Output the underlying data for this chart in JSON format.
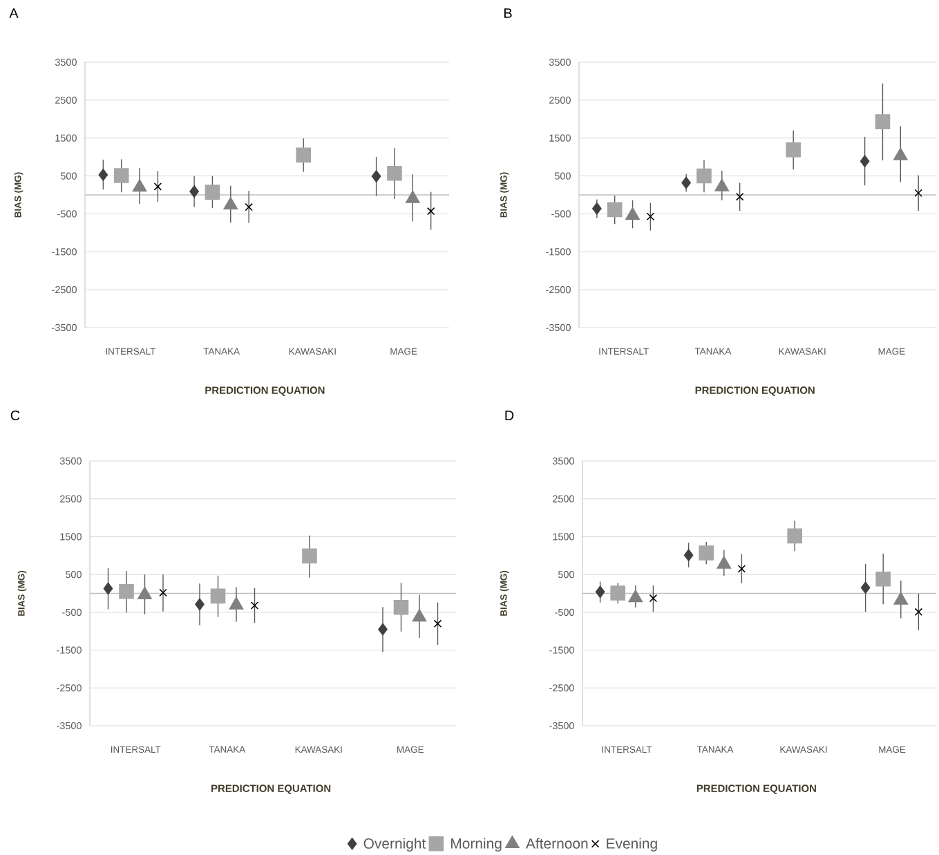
{
  "chart_data": [
    {
      "type": "scatter",
      "title": "A",
      "xlabel": "PREDICTION EQUATION",
      "ylabel": "BIAS (MG)",
      "categories": [
        "INTERSALT",
        "TANAKA",
        "KAWASAKI",
        "MAGE"
      ],
      "ylim": [
        -3500,
        3500
      ],
      "yticks": [
        -3500,
        -2500,
        -1500,
        -500,
        500,
        1500,
        2500,
        3500
      ],
      "grid": "y",
      "ref_lines": [
        {
          "axis": "y",
          "value": 0,
          "color": "#bfbfbf"
        }
      ],
      "series": [
        {
          "color": "#404040",
          "marker": "diamond",
          "values": [
            530,
            90,
            null,
            490
          ],
          "errors": [
            [
              140,
              930
            ],
            [
              -320,
              500
            ],
            null,
            [
              -30,
              1000
            ]
          ]
        },
        {
          "color": "#a6a6a6",
          "marker": "square",
          "values": [
            510,
            70,
            1050,
            570
          ],
          "errors": [
            [
              70,
              940
            ],
            [
              -350,
              500
            ],
            [
              610,
              1490
            ],
            [
              -110,
              1240
            ]
          ]
        },
        {
          "color": "#808080",
          "marker": "triangle",
          "values": [
            200,
            -270,
            null,
            -100
          ],
          "errors": [
            [
              -240,
              710
            ],
            [
              -730,
              240
            ],
            null,
            [
              -700,
              540
            ]
          ]
        },
        {
          "color": "#000000",
          "marker": "cross",
          "values": [
            220,
            -320,
            null,
            -430
          ],
          "errors": [
            [
              -180,
              630
            ],
            [
              -740,
              110
            ],
            null,
            [
              -920,
              80
            ]
          ]
        }
      ]
    },
    {
      "type": "scatter",
      "title": "B",
      "xlabel": "PREDICTION EQUATION",
      "ylabel": "BIAS (MG)",
      "categories": [
        "INTERSALT",
        "TANAKA",
        "KAWASAKI",
        "MAGE"
      ],
      "ylim": [
        -3500,
        3500
      ],
      "yticks": [
        -3500,
        -2500,
        -1500,
        -500,
        500,
        1500,
        2500,
        3500
      ],
      "grid": "y",
      "ref_lines": [
        {
          "axis": "y",
          "value": 0,
          "color": "#bfbfbf"
        }
      ],
      "series": [
        {
          "color": "#404040",
          "marker": "diamond",
          "values": [
            -360,
            320,
            null,
            890
          ],
          "errors": [
            [
              -610,
              -120
            ],
            [
              80,
              550
            ],
            null,
            [
              250,
              1530
            ]
          ]
        },
        {
          "color": "#a6a6a6",
          "marker": "square",
          "values": [
            -390,
            500,
            1190,
            1930
          ],
          "errors": [
            [
              -770,
              -20
            ],
            [
              70,
              920
            ],
            [
              670,
              1700
            ],
            [
              910,
              2940
            ]
          ]
        },
        {
          "color": "#808080",
          "marker": "triangle",
          "values": [
            -540,
            210,
            null,
            1030
          ],
          "errors": [
            [
              -880,
              -140
            ],
            [
              -140,
              640
            ],
            null,
            [
              340,
              1810
            ]
          ]
        },
        {
          "color": "#000000",
          "marker": "cross",
          "values": [
            -570,
            -50,
            null,
            50
          ],
          "errors": [
            [
              -940,
              -210
            ],
            [
              -420,
              320
            ],
            null,
            [
              -420,
              520
            ]
          ]
        }
      ]
    },
    {
      "type": "scatter",
      "title": "C",
      "xlabel": "PREDICTION EQUATION",
      "ylabel": "BIAS (MG)",
      "categories": [
        "INTERSALT",
        "TANAKA",
        "KAWASAKI",
        "MAGE"
      ],
      "ylim": [
        -3500,
        3500
      ],
      "yticks": [
        -3500,
        -2500,
        -1500,
        -500,
        500,
        1500,
        2500,
        3500
      ],
      "grid": "y",
      "legend": "bottom",
      "ref_lines": [
        {
          "axis": "y",
          "value": 0,
          "color": "#bfbfbf"
        }
      ],
      "series": [
        {
          "name": "Overnight",
          "color": "#404040",
          "marker": "diamond",
          "values": [
            130,
            -290,
            null,
            -950
          ],
          "errors": [
            [
              -420,
              670
            ],
            [
              -840,
              260
            ],
            null,
            [
              -1550,
              -360
            ]
          ]
        },
        {
          "name": "Morning",
          "color": "#a6a6a6",
          "marker": "square",
          "values": [
            50,
            -70,
            990,
            -370
          ],
          "errors": [
            [
              -510,
              590
            ],
            [
              -620,
              470
            ],
            [
              420,
              1530
            ],
            [
              -1010,
              280
            ]
          ]
        },
        {
          "name": "Afternoon",
          "color": "#808080",
          "marker": "triangle",
          "values": [
            -40,
            -310,
            null,
            -630
          ],
          "errors": [
            [
              -550,
              500
            ],
            [
              -750,
              160
            ],
            null,
            [
              -1180,
              -40
            ]
          ]
        },
        {
          "name": "Evening",
          "color": "#000000",
          "marker": "cross",
          "values": [
            20,
            -320,
            null,
            -800
          ],
          "errors": [
            [
              -480,
              500
            ],
            [
              -780,
              140
            ],
            null,
            [
              -1360,
              -240
            ]
          ]
        }
      ]
    },
    {
      "type": "scatter",
      "title": "D",
      "xlabel": "PREDICTION EQUATION",
      "ylabel": "BIAS (MG)",
      "categories": [
        "INTERSALT",
        "TANAKA",
        "KAWASAKI",
        "MAGE"
      ],
      "ylim": [
        -3500,
        3500
      ],
      "yticks": [
        -3500,
        -2500,
        -1500,
        -500,
        500,
        1500,
        2500,
        3500
      ],
      "grid": "y",
      "ref_lines": [
        {
          "axis": "y",
          "value": 0,
          "color": "#bfbfbf"
        }
      ],
      "series": [
        {
          "color": "#404040",
          "marker": "diamond",
          "values": [
            40,
            1010,
            null,
            150
          ],
          "errors": [
            [
              -240,
              310
            ],
            [
              690,
              1340
            ],
            null,
            [
              -490,
              780
            ]
          ]
        },
        {
          "color": "#a6a6a6",
          "marker": "square",
          "values": [
            10,
            1070,
            1520,
            380
          ],
          "errors": [
            [
              -270,
              280
            ],
            [
              770,
              1360
            ],
            [
              1120,
              1920
            ],
            [
              -290,
              1050
            ]
          ]
        },
        {
          "color": "#808080",
          "marker": "triangle",
          "values": [
            -120,
            770,
            null,
            -180
          ],
          "errors": [
            [
              -370,
              210
            ],
            [
              460,
              1140
            ],
            null,
            [
              -660,
              340
            ]
          ]
        },
        {
          "color": "#000000",
          "marker": "cross",
          "values": [
            -130,
            650,
            null,
            -490
          ],
          "errors": [
            [
              -490,
              210
            ],
            [
              270,
              1040
            ],
            null,
            [
              -970,
              -10
            ]
          ]
        }
      ]
    }
  ]
}
